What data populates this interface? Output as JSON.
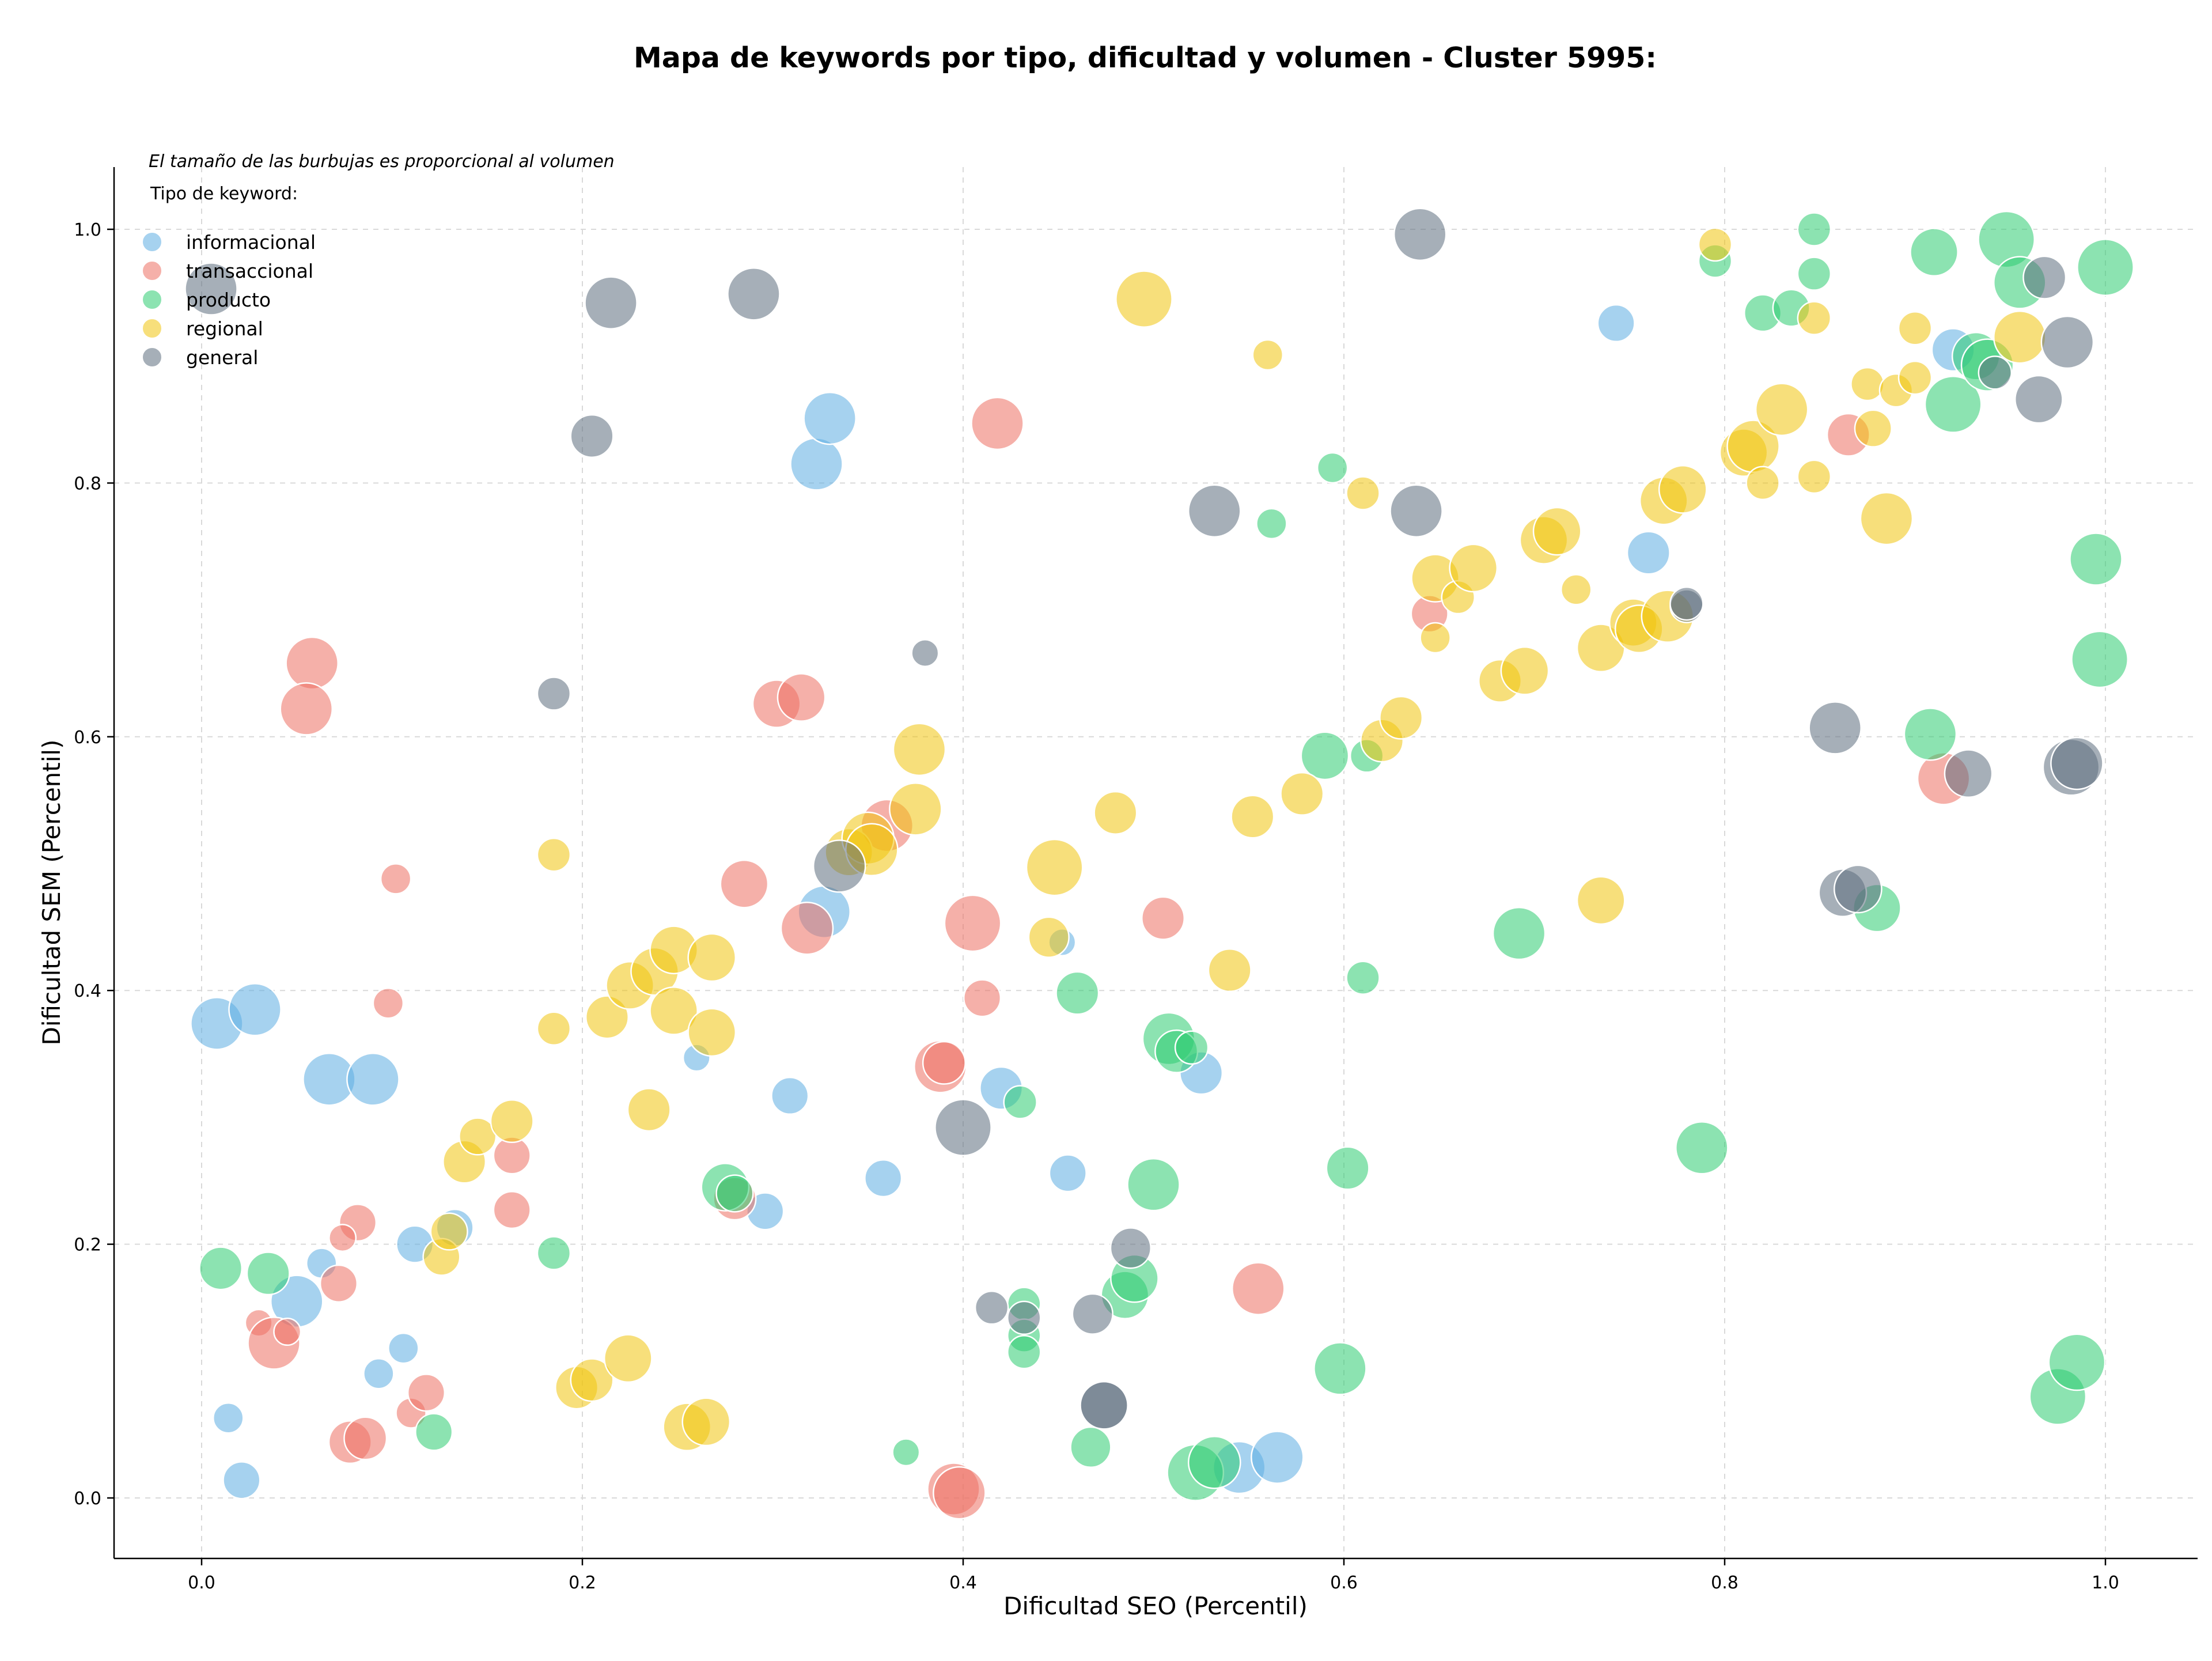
{
  "chart_data": {
    "type": "scatter",
    "title": "Mapa de keywords por tipo, dificultad y volumen - Cluster 5995:",
    "xlabel": "Dificultad SEO (Percentil)",
    "ylabel": "Dificultad SEM (Percentil)",
    "xlim": [
      -0.045,
      1.05
    ],
    "ylim": [
      -0.045,
      1.05
    ],
    "xticks": [
      "0.0",
      "0.2",
      "0.4",
      "0.6",
      "0.8",
      "1.0"
    ],
    "yticks": [
      "0.0",
      "0.2",
      "0.4",
      "0.6",
      "0.8",
      "1.0"
    ],
    "grid": true,
    "note": "El tamaño de las burbujas es proporcional al volumen",
    "legend_title": "Tipo de keyword:",
    "legend_position": "top-left",
    "series": [
      {
        "name": "informacional",
        "color": "#5DADE2",
        "points": [
          [
            0.008,
            0.374,
            3
          ],
          [
            0.028,
            0.385,
            3
          ],
          [
            0.067,
            0.33,
            3
          ],
          [
            0.09,
            0.33,
            3
          ],
          [
            0.05,
            0.155,
            3
          ],
          [
            0.063,
            0.185,
            1
          ],
          [
            0.014,
            0.063,
            1
          ],
          [
            0.021,
            0.014,
            1.5
          ],
          [
            0.093,
            0.098,
            1
          ],
          [
            0.106,
            0.118,
            1
          ],
          [
            0.112,
            0.2,
            1.5
          ],
          [
            0.133,
            0.213,
            1.5
          ],
          [
            0.26,
            0.347,
            0.8
          ],
          [
            0.296,
            0.226,
            1.5
          ],
          [
            0.309,
            0.317,
            1.5
          ],
          [
            0.323,
            0.815,
            3
          ],
          [
            0.33,
            0.851,
            3
          ],
          [
            0.327,
            0.462,
            3
          ],
          [
            0.358,
            0.252,
            1.5
          ],
          [
            0.42,
            0.323,
            2
          ],
          [
            0.455,
            0.256,
            1.5
          ],
          [
            0.452,
            0.438,
            0.8
          ],
          [
            0.525,
            0.335,
            2
          ],
          [
            0.545,
            0.024,
            3
          ],
          [
            0.565,
            0.032,
            3
          ],
          [
            0.743,
            0.926,
            1.5
          ],
          [
            0.76,
            0.745,
            2
          ],
          [
            0.92,
            0.905,
            2
          ]
        ]
      },
      {
        "name": "transaccional",
        "color": "#EC7063",
        "points": [
          [
            0.058,
            0.658,
            3
          ],
          [
            0.055,
            0.622,
            3
          ],
          [
            0.102,
            0.488,
            1
          ],
          [
            0.098,
            0.39,
            1
          ],
          [
            0.082,
            0.217,
            1.5
          ],
          [
            0.074,
            0.205,
            0.8
          ],
          [
            0.072,
            0.169,
            1.5
          ],
          [
            0.03,
            0.138,
            0.8
          ],
          [
            0.038,
            0.122,
            3
          ],
          [
            0.045,
            0.131,
            0.8
          ],
          [
            0.078,
            0.044,
            2
          ],
          [
            0.086,
            0.047,
            2
          ],
          [
            0.11,
            0.067,
            1
          ],
          [
            0.118,
            0.083,
            1.5
          ],
          [
            0.163,
            0.27,
            1.5
          ],
          [
            0.163,
            0.227,
            1.5
          ],
          [
            0.28,
            0.236,
            2
          ],
          [
            0.285,
            0.484,
            2.5
          ],
          [
            0.302,
            0.626,
            2.5
          ],
          [
            0.315,
            0.631,
            2.5
          ],
          [
            0.318,
            0.449,
            3
          ],
          [
            0.36,
            0.53,
            3
          ],
          [
            0.388,
            0.34,
            3
          ],
          [
            0.39,
            0.343,
            2
          ],
          [
            0.395,
            0.007,
            3
          ],
          [
            0.398,
            0.004,
            3
          ],
          [
            0.405,
            0.453,
            3.5
          ],
          [
            0.41,
            0.394,
            1.5
          ],
          [
            0.418,
            0.847,
            3
          ],
          [
            0.505,
            0.457,
            2
          ],
          [
            0.555,
            0.165,
            3
          ],
          [
            0.645,
            0.697,
            1.5
          ],
          [
            0.865,
            0.838,
            2
          ],
          [
            0.915,
            0.567,
            3
          ]
        ]
      },
      {
        "name": "producto",
        "color": "#2ECC71",
        "points": [
          [
            0.01,
            0.181,
            2
          ],
          [
            0.035,
            0.177,
            2
          ],
          [
            0.122,
            0.052,
            1.5
          ],
          [
            0.185,
            0.193,
            1.2
          ],
          [
            0.275,
            0.245,
            2.5
          ],
          [
            0.28,
            0.24,
            1.5
          ],
          [
            0.37,
            0.036,
            0.8
          ],
          [
            0.43,
            0.312,
            1.2
          ],
          [
            0.432,
            0.153,
            1.2
          ],
          [
            0.432,
            0.128,
            1.2
          ],
          [
            0.432,
            0.115,
            1.2
          ],
          [
            0.46,
            0.398,
            2
          ],
          [
            0.467,
            0.04,
            1.8
          ],
          [
            0.485,
            0.16,
            2.5
          ],
          [
            0.49,
            0.173,
            2.5
          ],
          [
            0.5,
            0.247,
            3
          ],
          [
            0.508,
            0.362,
            3
          ],
          [
            0.512,
            0.352,
            2
          ],
          [
            0.52,
            0.355,
            1.2
          ],
          [
            0.522,
            0.02,
            3.5
          ],
          [
            0.532,
            0.028,
            3
          ],
          [
            0.562,
            0.768,
            1
          ],
          [
            0.59,
            0.585,
            2.5
          ],
          [
            0.594,
            0.812,
            1
          ],
          [
            0.598,
            0.102,
            3
          ],
          [
            0.602,
            0.26,
            2
          ],
          [
            0.61,
            0.41,
            1.2
          ],
          [
            0.612,
            0.585,
            1.2
          ],
          [
            0.692,
            0.445,
            3
          ],
          [
            0.788,
            0.276,
            3
          ],
          [
            0.795,
            0.975,
            1.2
          ],
          [
            0.82,
            0.934,
            1.5
          ],
          [
            0.835,
            0.938,
            1.5
          ],
          [
            0.847,
            1.0,
            1.2
          ],
          [
            0.847,
            0.965,
            1.2
          ],
          [
            0.88,
            0.465,
            2.5
          ],
          [
            0.908,
            0.602,
            3
          ],
          [
            0.91,
            0.982,
            2.5
          ],
          [
            0.92,
            0.862,
            3.5
          ],
          [
            0.932,
            0.9,
            2.5
          ],
          [
            0.938,
            0.893,
            3
          ],
          [
            0.948,
            0.992,
            3.5
          ],
          [
            0.955,
            0.958,
            3
          ],
          [
            0.975,
            0.08,
            3.5
          ],
          [
            0.985,
            0.107,
            3.5
          ],
          [
            0.995,
            0.74,
            3
          ],
          [
            0.997,
            0.661,
            3.5
          ],
          [
            1.0,
            0.97,
            3.5
          ]
        ]
      },
      {
        "name": "regional",
        "color": "#F1C40F",
        "points": [
          [
            0.126,
            0.19,
            1.5
          ],
          [
            0.13,
            0.21,
            1.5
          ],
          [
            0.138,
            0.265,
            2
          ],
          [
            0.145,
            0.285,
            1.5
          ],
          [
            0.163,
            0.297,
            2
          ],
          [
            0.185,
            0.507,
            1.2
          ],
          [
            0.185,
            0.37,
            1.2
          ],
          [
            0.197,
            0.087,
            2
          ],
          [
            0.205,
            0.093,
            2
          ],
          [
            0.213,
            0.379,
            2
          ],
          [
            0.224,
            0.11,
            2.5
          ],
          [
            0.225,
            0.404,
            2.5
          ],
          [
            0.235,
            0.306,
            2
          ],
          [
            0.238,
            0.415,
            2.5
          ],
          [
            0.248,
            0.432,
            2.5
          ],
          [
            0.248,
            0.384,
            2.5
          ],
          [
            0.255,
            0.056,
            2.5
          ],
          [
            0.265,
            0.06,
            2.5
          ],
          [
            0.268,
            0.426,
            2.5
          ],
          [
            0.268,
            0.367,
            2.5
          ],
          [
            0.34,
            0.509,
            2.5
          ],
          [
            0.35,
            0.52,
            3
          ],
          [
            0.352,
            0.511,
            3
          ],
          [
            0.375,
            0.543,
            3
          ],
          [
            0.377,
            0.59,
            3
          ],
          [
            0.445,
            0.442,
            1.8
          ],
          [
            0.448,
            0.497,
            3.5
          ],
          [
            0.48,
            0.54,
            2
          ],
          [
            0.495,
            0.945,
            3.5
          ],
          [
            0.54,
            0.416,
            2
          ],
          [
            0.552,
            0.537,
            2
          ],
          [
            0.56,
            0.901,
            1
          ],
          [
            0.578,
            0.555,
            2
          ],
          [
            0.61,
            0.792,
            1.2
          ],
          [
            0.62,
            0.597,
            2
          ],
          [
            0.63,
            0.615,
            2
          ],
          [
            0.648,
            0.678,
            1
          ],
          [
            0.648,
            0.725,
            2.5
          ],
          [
            0.66,
            0.71,
            1.2
          ],
          [
            0.668,
            0.733,
            2.5
          ],
          [
            0.682,
            0.644,
            2
          ],
          [
            0.695,
            0.652,
            2.5
          ],
          [
            0.705,
            0.755,
            2.5
          ],
          [
            0.712,
            0.762,
            2.5
          ],
          [
            0.722,
            0.716,
            1
          ],
          [
            0.735,
            0.67,
            2.5
          ],
          [
            0.735,
            0.471,
            2.5
          ],
          [
            0.752,
            0.69,
            2.5
          ],
          [
            0.755,
            0.685,
            2.5
          ],
          [
            0.768,
            0.786,
            2.5
          ],
          [
            0.77,
            0.695,
            3
          ],
          [
            0.778,
            0.795,
            2.5
          ],
          [
            0.795,
            0.988,
            1.2
          ],
          [
            0.81,
            0.824,
            2.5
          ],
          [
            0.815,
            0.829,
            3
          ],
          [
            0.82,
            0.8,
            1.2
          ],
          [
            0.83,
            0.858,
            3
          ],
          [
            0.847,
            0.93,
            1.2
          ],
          [
            0.847,
            0.805,
            1.2
          ],
          [
            0.875,
            0.878,
            1.2
          ],
          [
            0.878,
            0.843,
            1.5
          ],
          [
            0.885,
            0.772,
            3
          ],
          [
            0.89,
            0.873,
            1.2
          ],
          [
            0.9,
            0.922,
            1.2
          ],
          [
            0.9,
            0.883,
            1.2
          ],
          [
            0.955,
            0.915,
            3
          ]
        ]
      },
      {
        "name": "general",
        "color": "#5D6D7E",
        "points": [
          [
            0.005,
            0.953,
            3
          ],
          [
            0.185,
            0.634,
            1.2
          ],
          [
            0.205,
            0.837,
            2
          ],
          [
            0.215,
            0.942,
            3
          ],
          [
            0.29,
            0.949,
            3
          ],
          [
            0.335,
            0.498,
            3
          ],
          [
            0.38,
            0.666,
            0.8
          ],
          [
            0.4,
            0.292,
            3.5
          ],
          [
            0.415,
            0.15,
            1.2
          ],
          [
            0.432,
            0.142,
            1.2
          ],
          [
            0.468,
            0.145,
            1.8
          ],
          [
            0.474,
            0.073,
            2.5
          ],
          [
            0.474,
            0.073,
            2.5
          ],
          [
            0.488,
            0.197,
            1.8
          ],
          [
            0.532,
            0.778,
            3
          ],
          [
            0.638,
            0.778,
            3
          ],
          [
            0.64,
            0.996,
            3
          ],
          [
            0.78,
            0.703,
            1.2
          ],
          [
            0.78,
            0.705,
            1.2
          ],
          [
            0.858,
            0.607,
            3
          ],
          [
            0.862,
            0.477,
            2.5
          ],
          [
            0.87,
            0.48,
            2.5
          ],
          [
            0.928,
            0.571,
            2.5
          ],
          [
            0.942,
            0.887,
            1.2
          ],
          [
            0.965,
            0.866,
            2.5
          ],
          [
            0.968,
            0.962,
            2
          ],
          [
            0.98,
            0.911,
            3
          ],
          [
            0.982,
            0.576,
            3.5
          ],
          [
            0.985,
            0.579,
            3
          ]
        ]
      }
    ]
  }
}
